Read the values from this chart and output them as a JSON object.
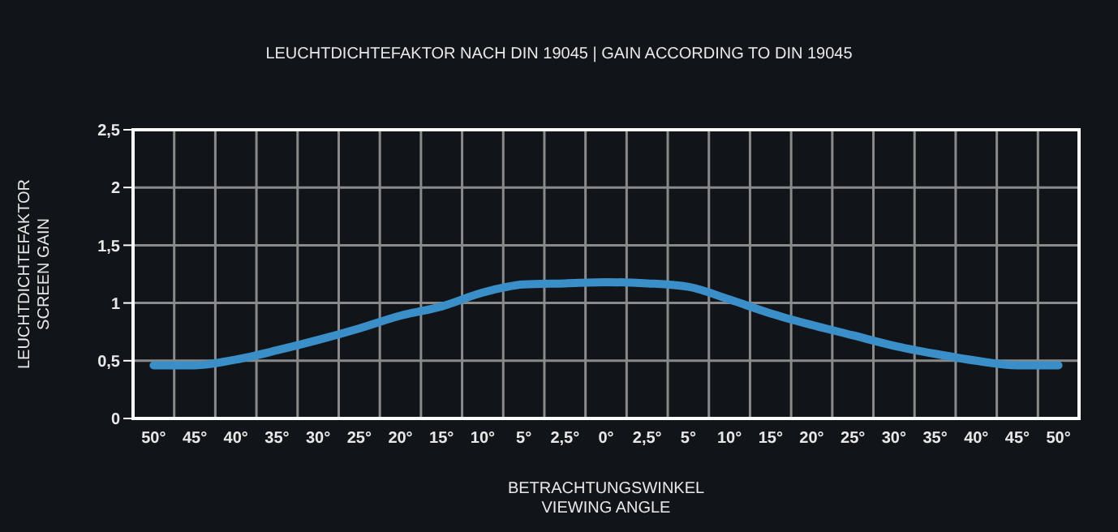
{
  "chart_data": {
    "type": "line",
    "title": "LEUCHTDICHTEFAKTOR NACH DIN 19045 | GAIN ACCORDING TO DIN 19045",
    "xlabel": "BETRACHTUNGSWINKEL\nVIEWING ANGLE",
    "ylabel": "LEUCHTDICHTEFAKTOR\nSCREEN GAIN",
    "categories": [
      "50°",
      "45°",
      "40°",
      "35°",
      "30°",
      "25°",
      "20°",
      "15°",
      "10°",
      "5°",
      "2,5°",
      "0°",
      "2,5°",
      "5°",
      "10°",
      "15°",
      "20°",
      "25°",
      "30°",
      "35°",
      "40°",
      "45°",
      "50°"
    ],
    "series": [
      {
        "color": "#3a8fc8",
        "values": [
          0.46,
          0.46,
          0.51,
          0.59,
          0.68,
          0.78,
          0.89,
          0.97,
          1.09,
          1.16,
          1.17,
          1.18,
          1.17,
          1.14,
          1.03,
          0.91,
          0.81,
          0.72,
          0.63,
          0.56,
          0.5,
          0.46,
          0.46
        ]
      }
    ],
    "ylim": [
      0,
      2.5
    ],
    "yticks": [
      0,
      {
        "value": 0.5,
        "label": "0,5"
      },
      1,
      {
        "value": 1.5,
        "label": "1,5"
      },
      2,
      {
        "value": 2.5,
        "label": "2,5"
      }
    ],
    "grid": true,
    "legend": false,
    "marker": "none",
    "line_style": "solid"
  }
}
